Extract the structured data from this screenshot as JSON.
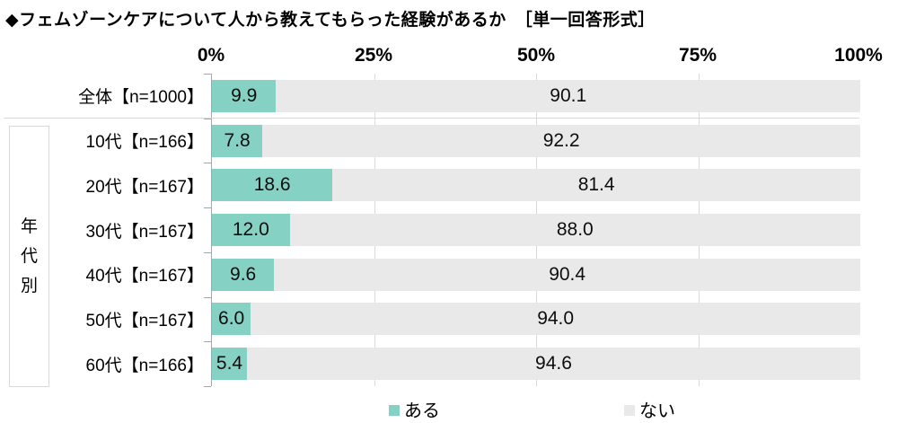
{
  "title": "◆フェムゾーンケアについて人から教えてもらった経験があるか　［単一回答形式］",
  "axis_ticks": [
    "0%",
    "25%",
    "50%",
    "75%",
    "100%"
  ],
  "group_label": "年代別",
  "legend": [
    {
      "label": "ある",
      "color": "#85d2c4"
    },
    {
      "label": "ない",
      "color": "#e9e9e9"
    }
  ],
  "colors": {
    "have": "#85d2c4",
    "not": "#e9e9e9",
    "axis": "#a6a6a6",
    "gridline": "#d9d9d9",
    "divider": "#d9d9d9"
  },
  "rows": [
    {
      "label": "全体【n=1000】",
      "have": "9.9",
      "not": "90.1"
    },
    {
      "label": "10代【n=166】",
      "have": "7.8",
      "not": "92.2"
    },
    {
      "label": "20代【n=167】",
      "have": "18.6",
      "not": "81.4"
    },
    {
      "label": "30代【n=167】",
      "have": "12.0",
      "not": "88.0"
    },
    {
      "label": "40代【n=167】",
      "have": "9.6",
      "not": "90.4"
    },
    {
      "label": "50代【n=167】",
      "have": "6.0",
      "not": "94.0"
    },
    {
      "label": "60代【n=166】",
      "have": "5.4",
      "not": "94.6"
    }
  ],
  "chart_data": {
    "type": "bar",
    "orientation": "horizontal",
    "stacked": true,
    "title": "◆フェムゾーンケアについて人から教えてもらった経験があるか　［単一回答形式］",
    "categories": [
      "全体【n=1000】",
      "10代【n=166】",
      "20代【n=167】",
      "30代【n=167】",
      "40代【n=167】",
      "50代【n=167】",
      "60代【n=166】"
    ],
    "series": [
      {
        "name": "ある",
        "color": "#85d2c4",
        "values": [
          9.9,
          7.8,
          18.6,
          12.0,
          9.6,
          6.0,
          5.4
        ]
      },
      {
        "name": "ない",
        "color": "#e9e9e9",
        "values": [
          90.1,
          92.2,
          81.4,
          88.0,
          90.4,
          94.0,
          94.6
        ]
      }
    ],
    "xlim": [
      0,
      100
    ],
    "x_tick_labels": [
      "0%",
      "25%",
      "50%",
      "75%",
      "100%"
    ],
    "unit": "%",
    "gridlines": [
      25,
      50,
      75
    ],
    "legend_position": "bottom",
    "group_label": "年代別",
    "grouped_categories_range": [
      1,
      6
    ],
    "value_labels": "inside-segments"
  }
}
